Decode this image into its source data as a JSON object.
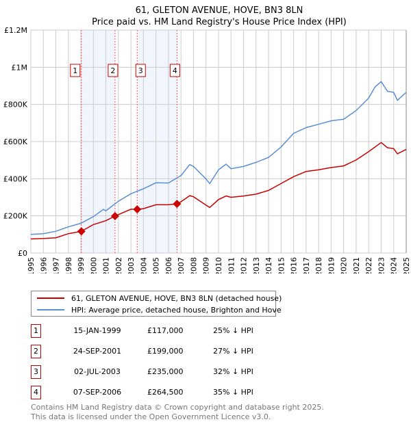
{
  "chart_data": {
    "type": "line",
    "title": "61, GLETON AVENUE, HOVE, BN3 8LN",
    "subtitle": "Price paid vs. HM Land Registry's House Price Index (HPI)",
    "xlim": [
      1995,
      2025
    ],
    "ylim": [
      0,
      1200000
    ],
    "x_ticks": [
      "1995",
      "1996",
      "1997",
      "1998",
      "1999",
      "2000",
      "2001",
      "2002",
      "2003",
      "2004",
      "2005",
      "2006",
      "2007",
      "2008",
      "2009",
      "2010",
      "2011",
      "2012",
      "2013",
      "2014",
      "2015",
      "2016",
      "2017",
      "2018",
      "2019",
      "2020",
      "2021",
      "2022",
      "2023",
      "2024",
      "2025"
    ],
    "y_ticks": [
      {
        "v": 0,
        "label": "£0"
      },
      {
        "v": 200000,
        "label": "£200K"
      },
      {
        "v": 400000,
        "label": "£400K"
      },
      {
        "v": 600000,
        "label": "£600K"
      },
      {
        "v": 800000,
        "label": "£800K"
      },
      {
        "v": 1000000,
        "label": "£1M"
      },
      {
        "v": 1200000,
        "label": "£1.2M"
      }
    ],
    "grid": true,
    "series": [
      {
        "name": "61, GLETON AVENUE, HOVE, BN3 8LN (detached house)",
        "color": "#cc0000",
        "x": [
          1995,
          1996,
          1997,
          1998,
          1999.04,
          2000,
          2001,
          2001.73,
          2003,
          2003.5,
          2004,
          2005,
          2006,
          2006.68,
          2007,
          2007.7,
          2008,
          2009,
          2009.3,
          2010,
          2010.6,
          2011,
          2012,
          2013,
          2014,
          2015,
          2016,
          2017,
          2018,
          2019,
          2020,
          2021,
          2022,
          2023,
          2023.5,
          2024,
          2024.3,
          2025
        ],
        "y": [
          76000,
          78000,
          82000,
          104000,
          117000,
          153000,
          174000,
          199000,
          236000,
          235000,
          239000,
          260000,
          260000,
          264500,
          276000,
          309000,
          303000,
          258000,
          245000,
          288000,
          307000,
          300000,
          307000,
          317000,
          337000,
          374000,
          411000,
          439000,
          448000,
          460000,
          469000,
          501000,
          546000,
          595000,
          567000,
          562000,
          534000,
          558000
        ]
      },
      {
        "name": "HPI: Average price, detached house, Brighton and Hove",
        "color": "#5b8fd4",
        "x": [
          1995,
          1996,
          1997,
          1998,
          1999,
          2000,
          2000.8,
          2001,
          2002,
          2003,
          2004,
          2005,
          2006,
          2007,
          2007.7,
          2008,
          2009,
          2009.3,
          2010,
          2010.6,
          2011,
          2012,
          2013,
          2014,
          2015,
          2016,
          2017,
          2018,
          2019,
          2020,
          2021,
          2022,
          2022.5,
          2023,
          2023.5,
          2024,
          2024.3,
          2025
        ],
        "y": [
          100000,
          104000,
          117000,
          141000,
          160000,
          196000,
          235000,
          227000,
          279000,
          319000,
          346000,
          378000,
          377000,
          417000,
          476000,
          466000,
          399000,
          374000,
          448000,
          478000,
          454000,
          466000,
          488000,
          515000,
          571000,
          644000,
          675000,
          693000,
          712000,
          720000,
          767000,
          834000,
          893000,
          923000,
          871000,
          865000,
          822000,
          865000
        ]
      }
    ],
    "sales": [
      {
        "n": "1",
        "x": 1999.04,
        "y": 117000,
        "date": "15-JAN-1999",
        "price": "£117,000",
        "hpi": "25% ↓ HPI"
      },
      {
        "n": "2",
        "x": 2001.73,
        "y": 199000,
        "date": "24-SEP-2001",
        "price": "£199,000",
        "hpi": "27% ↓ HPI"
      },
      {
        "n": "3",
        "x": 2003.5,
        "y": 235000,
        "date": "02-JUL-2003",
        "price": "£235,000",
        "hpi": "32% ↓ HPI"
      },
      {
        "n": "4",
        "x": 2006.68,
        "y": 264500,
        "date": "07-SEP-2006",
        "price": "£264,500",
        "hpi": "35% ↓ HPI"
      }
    ],
    "shaded_ranges": [
      [
        1999.04,
        2001.73
      ],
      [
        2003.5,
        2006.68
      ]
    ],
    "legend_position": "below"
  },
  "footer": {
    "line1": "Contains HM Land Registry data © Crown copyright and database right 2025.",
    "line2": "This data is licensed under the Open Government Licence v3.0."
  }
}
